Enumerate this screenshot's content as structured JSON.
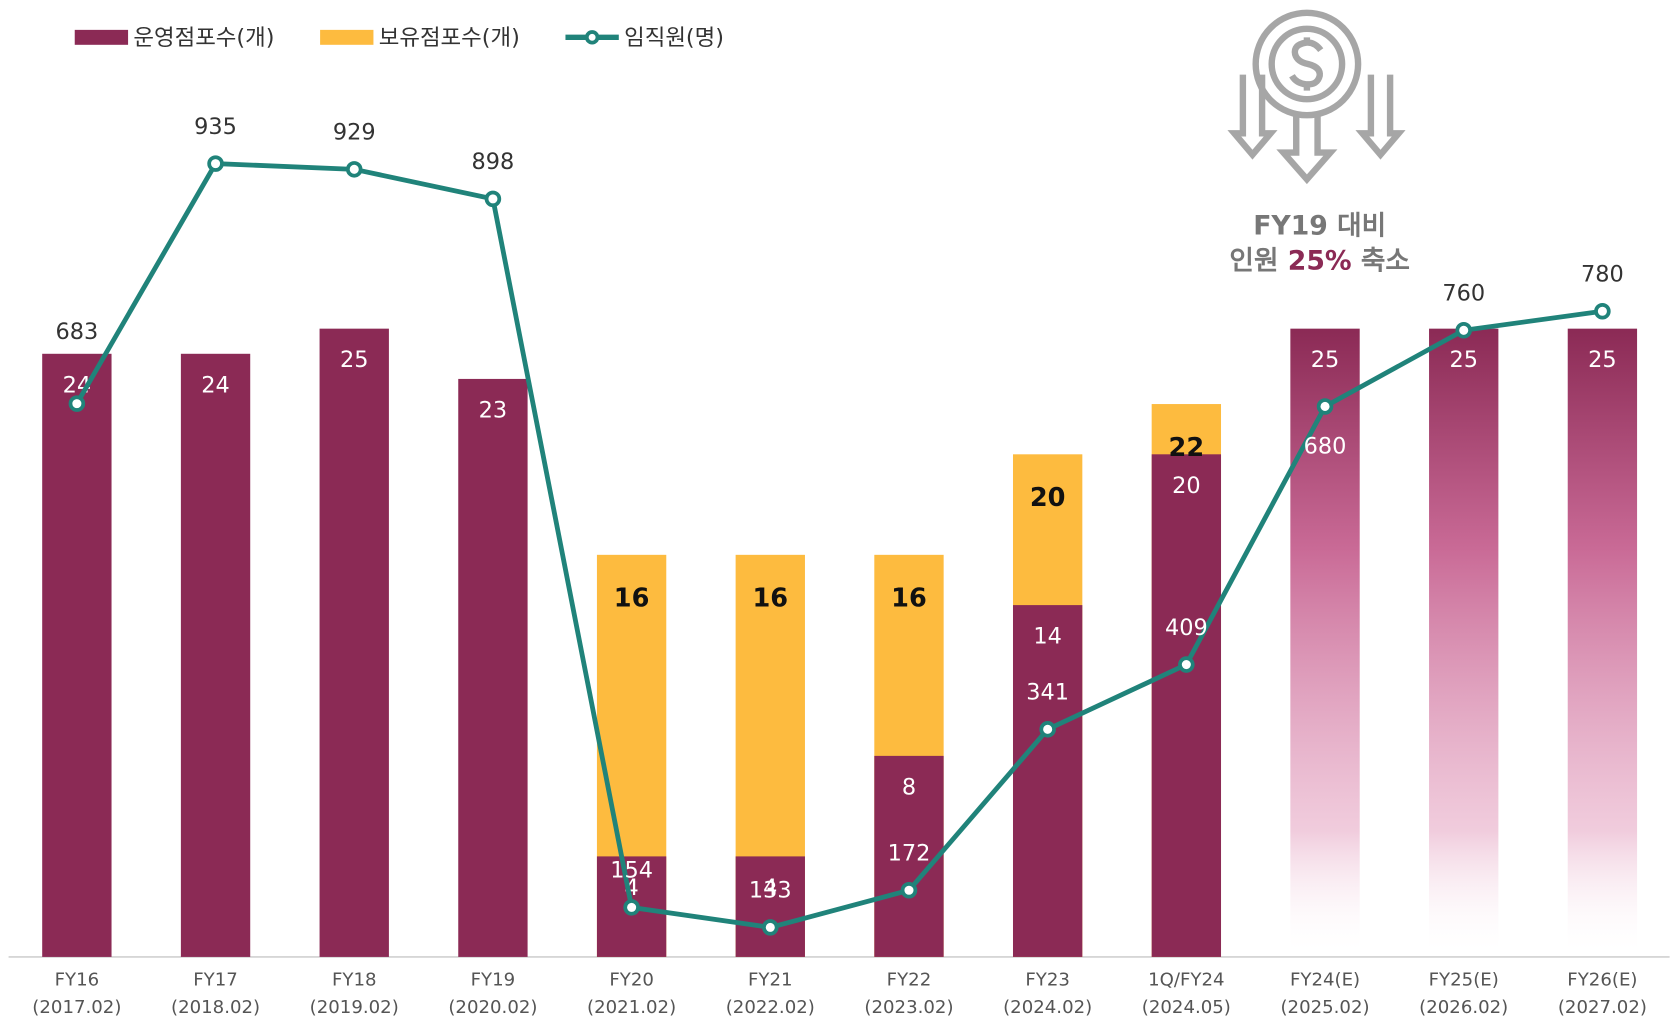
{
  "chart_data": {
    "type": "bar_line",
    "categories": [
      "FY16",
      "FY17",
      "FY18",
      "FY19",
      "FY20",
      "FY21",
      "FY22",
      "FY23",
      "1Q/FY24",
      "FY24(E)",
      "FY25(E)",
      "FY26(E)"
    ],
    "category_periods": [
      "(2017.02)",
      "(2018.02)",
      "(2019.02)",
      "(2020.02)",
      "(2021.02)",
      "(2022.02)",
      "(2023.02)",
      "(2024.02)",
      "(2024.05)",
      "(2025.02)",
      "(2026.02)",
      "(2027.02)"
    ],
    "series": [
      {
        "name": "운영점포수(개)",
        "color": "#8b2a55",
        "values": [
          24,
          24,
          25,
          23,
          4,
          4,
          8,
          14,
          20,
          25,
          25,
          25
        ]
      },
      {
        "name": "보유점포수(개)",
        "color": "#fdbb3f",
        "values": [
          null,
          null,
          null,
          null,
          16,
          16,
          16,
          20,
          22,
          null,
          null,
          null
        ]
      },
      {
        "name": "임직원(명)",
        "color": "#20837a",
        "axis": "y2",
        "values": [
          683,
          935,
          929,
          898,
          154,
          133,
          172,
          341,
          409,
          680,
          760,
          780
        ]
      }
    ],
    "ylim": [
      0,
      36.38
    ],
    "y2lim": [
      102,
      1062
    ],
    "annotation": {
      "line1": "FY19 대비",
      "line2_before": "인원",
      "highlight": "25%",
      "line2_after": "축소"
    }
  }
}
